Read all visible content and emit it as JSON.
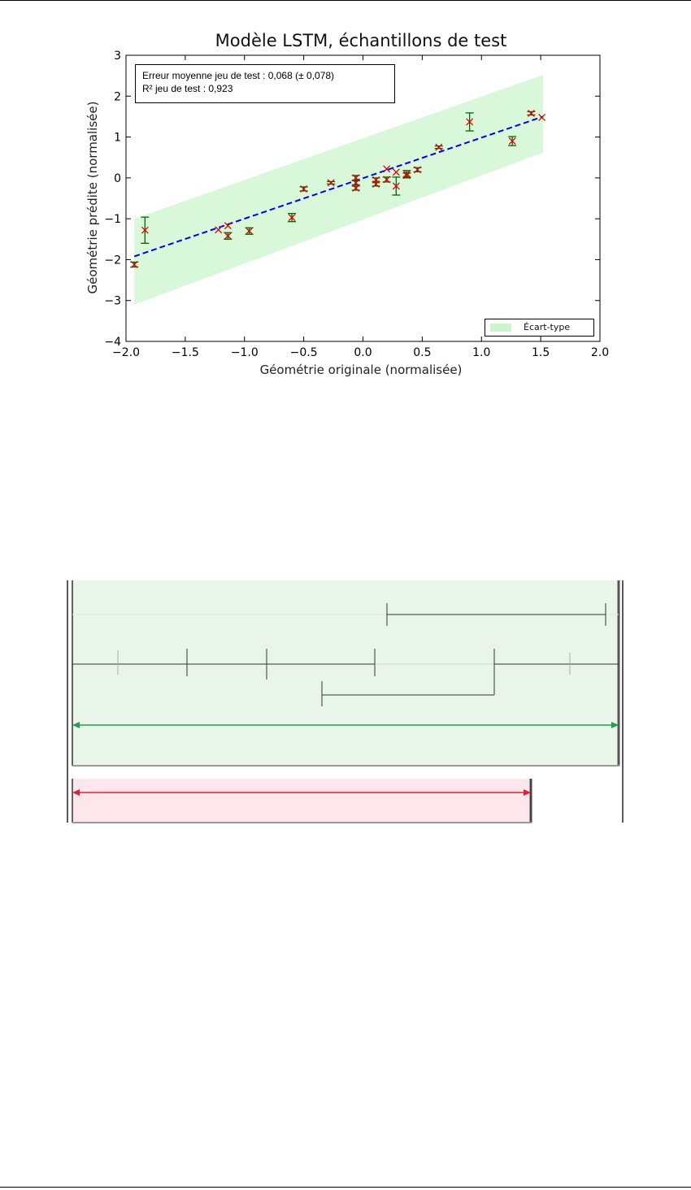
{
  "chart_data": {
    "type": "scatter",
    "title": "Modèle LSTM, échantillons de test",
    "xlabel": "Géométrie originale (normalisée)",
    "ylabel": "Géométrie prédite (normalisée)",
    "xlim": [
      -2.0,
      2.0
    ],
    "ylim": [
      -4,
      3
    ],
    "x_ticks": [
      "−2.0",
      "−1.5",
      "−1.0",
      "−0.5",
      "0.0",
      "0.5",
      "1.0",
      "1.5",
      "2.0"
    ],
    "y_ticks": [
      "−4",
      "−3",
      "−2",
      "−1",
      "0",
      "1",
      "2",
      "3"
    ],
    "annotation_lines": [
      "Erreur moyenne jeu de test : 0,068 (± 0,078)",
      "R² jeu de test : 0,923"
    ],
    "legend": {
      "entries": [
        "Écart-type"
      ],
      "placement": "lower-right"
    },
    "colors": {
      "band": "#ccf5cc",
      "fit": "#0000ee",
      "points": "#dd0000",
      "errorbars": "#006600"
    },
    "fit_line": {
      "x": [
        -1.93,
        1.52
      ],
      "y": [
        -1.92,
        1.5
      ]
    },
    "band": {
      "x": [
        -1.93,
        1.52
      ],
      "lower": [
        -3.1,
        0.62
      ],
      "upper": [
        -1.0,
        2.52
      ]
    },
    "points": [
      {
        "x": -1.93,
        "y": -2.12,
        "err": 0.06
      },
      {
        "x": -1.84,
        "y": -1.28,
        "err": 0.32
      },
      {
        "x": -1.22,
        "y": -1.27,
        "err": 0.0
      },
      {
        "x": -1.14,
        "y": -1.17,
        "err": 0.0
      },
      {
        "x": -1.14,
        "y": -1.42,
        "err": 0.08
      },
      {
        "x": -0.96,
        "y": -1.3,
        "err": 0.08
      },
      {
        "x": -0.6,
        "y": -0.97,
        "err": 0.1
      },
      {
        "x": -0.5,
        "y": -0.27,
        "err": 0.05
      },
      {
        "x": -0.27,
        "y": -0.12,
        "err": 0.03
      },
      {
        "x": -0.06,
        "y": 0.0,
        "err": 0.06
      },
      {
        "x": -0.06,
        "y": -0.12,
        "err": 0.05
      },
      {
        "x": -0.06,
        "y": -0.25,
        "err": 0.05
      },
      {
        "x": 0.11,
        "y": -0.05,
        "err": 0.05
      },
      {
        "x": 0.11,
        "y": -0.15,
        "err": 0.05
      },
      {
        "x": 0.2,
        "y": 0.22,
        "err": 0.0
      },
      {
        "x": 0.2,
        "y": -0.04,
        "err": 0.06
      },
      {
        "x": 0.28,
        "y": 0.14,
        "err": 0.0
      },
      {
        "x": 0.28,
        "y": -0.2,
        "err": 0.22
      },
      {
        "x": 0.37,
        "y": 0.1,
        "err": 0.08
      },
      {
        "x": 0.37,
        "y": 0.06,
        "err": 0.06
      },
      {
        "x": 0.46,
        "y": 0.2,
        "err": 0.05
      },
      {
        "x": 0.64,
        "y": 0.75,
        "err": 0.03
      },
      {
        "x": 0.9,
        "y": 1.37,
        "err": 0.22
      },
      {
        "x": 1.26,
        "y": 0.9,
        "err": 0.11
      },
      {
        "x": 1.42,
        "y": 1.58,
        "err": 0.04
      },
      {
        "x": 1.51,
        "y": 1.48,
        "err": 0.0
      }
    ]
  },
  "diagram": {
    "colors": {
      "green_panel": "#eaf5ea",
      "green_arrow": "#1f9e4f",
      "red_panel": "#fde7ec",
      "red_arrow": "#e02030",
      "lines": "#333333"
    }
  }
}
